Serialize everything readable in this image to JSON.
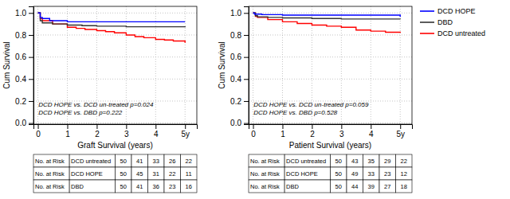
{
  "chart_data": [
    {
      "type": "line",
      "line_style": "step",
      "grid": true,
      "xlabel": "Graft Survival (years)",
      "ylabel": "Cum Survival",
      "annotations": [
        "DCD HOPE vs. DCD un-treated p=0.024",
        "DCD HOPE vs. DBD p=0.222"
      ],
      "xlim": [
        -0.15,
        5.4
      ],
      "ylim": [
        -0.01,
        1.06
      ],
      "xticks": [
        0,
        1,
        2,
        3,
        4,
        {
          "value": 5,
          "label": "5y"
        }
      ],
      "yticks": [
        {
          "value": 0.0,
          "label": "0.0"
        },
        {
          "value": 0.2,
          "label": "0.2"
        },
        {
          "value": 0.4,
          "label": "0.4"
        },
        {
          "value": 0.6,
          "label": "0.6"
        },
        {
          "value": 0.8,
          "label": "0.8"
        },
        {
          "value": 1.0,
          "label": "1.0"
        }
      ],
      "series": [
        {
          "color": "blue",
          "x": [
            0,
            0.08,
            0.15,
            0.4,
            1.0,
            5.0
          ],
          "values": [
            1.0,
            0.96,
            0.95,
            0.93,
            0.92,
            0.92
          ]
        },
        {
          "color": "#333333",
          "x": [
            0,
            0.08,
            0.15,
            0.5,
            1.0,
            1.5,
            2.0,
            3.0,
            4.0,
            5.0
          ],
          "values": [
            1.0,
            0.93,
            0.91,
            0.9,
            0.89,
            0.885,
            0.88,
            0.875,
            0.875,
            0.87
          ]
        },
        {
          "color": "red",
          "x": [
            0,
            0.08,
            0.15,
            0.5,
            1.0,
            1.3,
            1.6,
            2.0,
            2.3,
            2.6,
            3.0,
            3.3,
            3.6,
            4.0,
            4.3,
            4.6,
            5.0
          ],
          "values": [
            1.0,
            0.95,
            0.93,
            0.9,
            0.87,
            0.86,
            0.85,
            0.84,
            0.83,
            0.82,
            0.8,
            0.785,
            0.775,
            0.76,
            0.755,
            0.745,
            0.73
          ]
        }
      ],
      "at_risk": [
        {
          "label": "No. at Risk",
          "name": "DCD untreated",
          "values": [
            50,
            41,
            33,
            26,
            22
          ]
        },
        {
          "label": "No. at Risk",
          "name": "DCD HOPE",
          "values": [
            50,
            45,
            31,
            22,
            11
          ]
        },
        {
          "label": "No. at Risk",
          "name": "DBD",
          "values": [
            50,
            41,
            36,
            23,
            16
          ]
        }
      ]
    },
    {
      "type": "line",
      "line_style": "step",
      "grid": true,
      "legend": "right",
      "xlabel": "Patient Survival (years)",
      "ylabel": "Cum Survival",
      "annotations": [
        "DCD HOPE vs. DCD un-treated p=0.059",
        "DCD HOPE vs. DBD p=0.528"
      ],
      "xlim": [
        -0.15,
        5.4
      ],
      "ylim": [
        -0.01,
        1.06
      ],
      "xticks": [
        0,
        1,
        2,
        3,
        4,
        {
          "value": 5,
          "label": "5y"
        }
      ],
      "yticks": [
        {
          "value": 0.0,
          "label": "0.0"
        },
        {
          "value": 0.2,
          "label": "0.2"
        },
        {
          "value": 0.4,
          "label": "0.4"
        },
        {
          "value": 0.6,
          "label": "0.6"
        },
        {
          "value": 0.8,
          "label": "0.8"
        },
        {
          "value": 1.0,
          "label": "1.0"
        }
      ],
      "series": [
        {
          "name": "DCD HOPE",
          "color": "blue",
          "x": [
            0,
            0.05,
            0.3,
            1.0,
            5.0
          ],
          "values": [
            1.0,
            0.99,
            0.985,
            0.98,
            0.965
          ]
        },
        {
          "name": "DBD",
          "color": "#333333",
          "x": [
            0,
            0.08,
            0.15,
            0.5,
            1.0,
            2.0,
            3.0,
            4.0,
            5.0
          ],
          "values": [
            1.0,
            0.975,
            0.965,
            0.96,
            0.955,
            0.95,
            0.945,
            0.945,
            0.943
          ]
        },
        {
          "name": "DCD untreated",
          "color": "red",
          "x": [
            0,
            0.08,
            0.15,
            0.5,
            1.0,
            1.5,
            2.0,
            2.5,
            3.0,
            3.5,
            4.0,
            4.5,
            5.0
          ],
          "values": [
            1.0,
            0.97,
            0.96,
            0.94,
            0.92,
            0.905,
            0.89,
            0.88,
            0.87,
            0.845,
            0.835,
            0.825,
            0.82
          ]
        }
      ],
      "at_risk": [
        {
          "label": "No. at Risk",
          "name": "DCD untreated",
          "values": [
            50,
            43,
            35,
            29,
            22
          ]
        },
        {
          "label": "No. at Risk",
          "name": "DCD HOPE",
          "values": [
            50,
            49,
            33,
            23,
            12
          ]
        },
        {
          "label": "No. at Risk",
          "name": "DBD",
          "values": [
            50,
            44,
            39,
            27,
            18
          ]
        }
      ]
    }
  ]
}
